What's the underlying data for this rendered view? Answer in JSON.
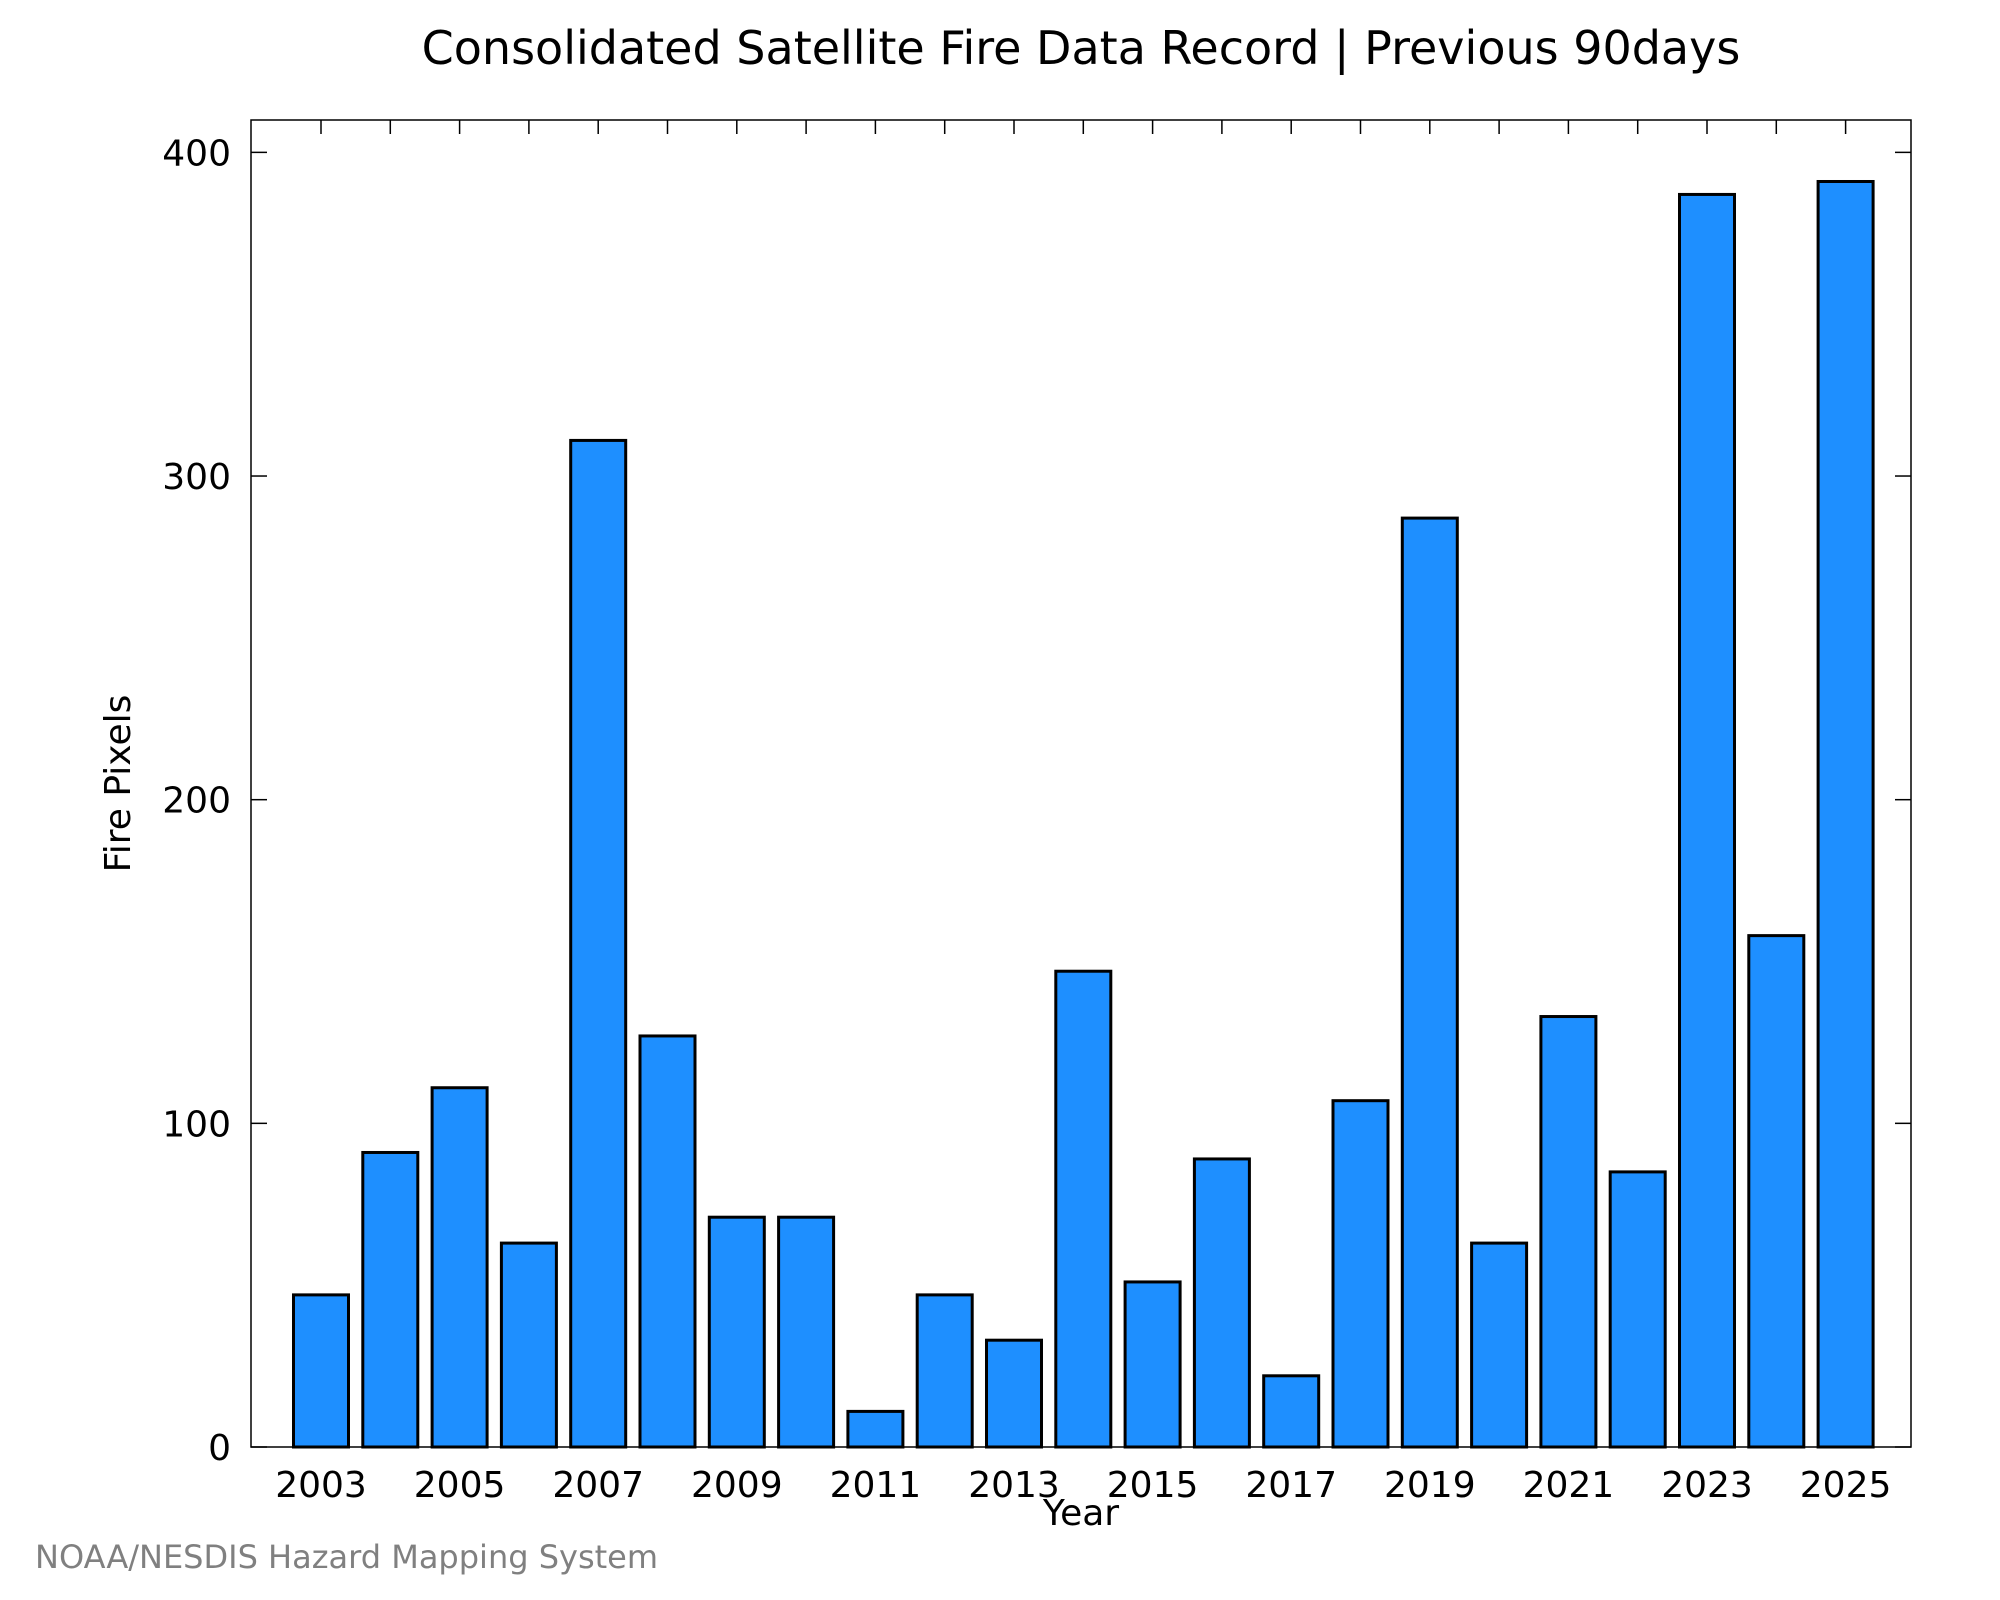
{
  "chart_data": {
    "type": "bar",
    "title": "Consolidated Satellite Fire Data Record | Previous 90days",
    "xlabel": "Year",
    "ylabel": "Fire Pixels",
    "categories": [
      "2003",
      "2004",
      "2005",
      "2006",
      "2007",
      "2008",
      "2009",
      "2010",
      "2011",
      "2012",
      "2013",
      "2014",
      "2015",
      "2016",
      "2017",
      "2018",
      "2019",
      "2020",
      "2021",
      "2022",
      "2023",
      "2024",
      "2025"
    ],
    "values": [
      47,
      91,
      111,
      63,
      311,
      127,
      71,
      71,
      11,
      47,
      33,
      147,
      51,
      89,
      22,
      107,
      287,
      63,
      133,
      85,
      387,
      158,
      391
    ],
    "xticks": [
      "2003",
      "2005",
      "2007",
      "2009",
      "2011",
      "2013",
      "2015",
      "2017",
      "2019",
      "2021",
      "2023",
      "2025"
    ],
    "yticks": [
      0,
      100,
      200,
      300,
      400
    ],
    "ylim": [
      0,
      410
    ],
    "grid": false,
    "bar_color": "#1e8fff",
    "bar_edge_color": "#000000"
  },
  "credit": "NOAA/NESDIS Hazard Mapping System",
  "colors": {
    "credit_text": "#808080"
  }
}
